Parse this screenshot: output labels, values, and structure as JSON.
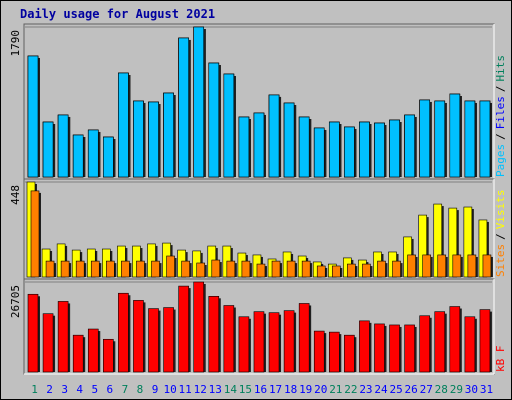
{
  "title": "Daily usage for August 2021",
  "chart_data": [
    {
      "type": "bar",
      "series": [
        {
          "name": "Hits",
          "color": "#00805c",
          "values": [
            1444,
            656,
            740,
            501,
            561,
            477,
            1241,
            907,
            895,
            1002,
            1659,
            1790,
            1360,
            1229,
            716,
            764,
            979,
            883,
            716,
            585,
            656,
            597,
            656,
            644,
            680,
            740,
            919,
            907,
            990,
            907,
            907
          ]
        },
        {
          "name": "Files",
          "color": "#0000ff",
          "values": [
            1444,
            656,
            740,
            501,
            561,
            477,
            1241,
            907,
            895,
            1002,
            1659,
            1790,
            1360,
            1229,
            716,
            764,
            979,
            883,
            716,
            585,
            656,
            597,
            656,
            644,
            680,
            740,
            919,
            907,
            990,
            907,
            907
          ]
        },
        {
          "name": "Pages",
          "color": "#00c0ff",
          "values": [
            1444,
            656,
            740,
            501,
            561,
            477,
            1241,
            907,
            895,
            1002,
            1659,
            1790,
            1360,
            1229,
            716,
            764,
            979,
            883,
            716,
            585,
            656,
            597,
            656,
            644,
            680,
            740,
            919,
            907,
            990,
            907,
            907
          ]
        }
      ],
      "legend_separator": "/",
      "ylim": [
        0,
        1790
      ],
      "yticks": [
        1790
      ]
    },
    {
      "type": "bar",
      "series": [
        {
          "name": "Visits",
          "color": "#ffff00",
          "values": [
            448,
            132,
            156,
            127,
            132,
            132,
            146,
            146,
            156,
            160,
            127,
            123,
            146,
            146,
            113,
            104,
            85,
            118,
            99,
            71,
            61,
            90,
            80,
            118,
            118,
            189,
            292,
            344,
            325,
            330,
            269
          ]
        },
        {
          "name": "Sites",
          "color": "#ff8000",
          "values": [
            406,
            75,
            75,
            75,
            75,
            75,
            75,
            75,
            75,
            99,
            75,
            66,
            80,
            75,
            75,
            61,
            75,
            75,
            75,
            52,
            52,
            61,
            61,
            75,
            75,
            104,
            104,
            104,
            104,
            104,
            104
          ]
        }
      ],
      "legend_separator": "/",
      "ylim": [
        0,
        448
      ],
      "yticks": [
        448
      ]
    },
    {
      "type": "bar",
      "categories": [
        "1",
        "2",
        "3",
        "4",
        "5",
        "6",
        "7",
        "8",
        "9",
        "10",
        "11",
        "12",
        "13",
        "14",
        "15",
        "16",
        "17",
        "18",
        "19",
        "20",
        "21",
        "22",
        "23",
        "24",
        "25",
        "26",
        "27",
        "28",
        "29",
        "30",
        "31"
      ],
      "category_colors": [
        "#00805c",
        "#0000ff",
        "#0000ff",
        "#0000ff",
        "#0000ff",
        "#0000ff",
        "#00805c",
        "#00805c",
        "#0000ff",
        "#0000ff",
        "#0000ff",
        "#0000ff",
        "#0000ff",
        "#00805c",
        "#00805c",
        "#0000ff",
        "#0000ff",
        "#0000ff",
        "#0000ff",
        "#0000ff",
        "#00805c",
        "#00805c",
        "#0000ff",
        "#0000ff",
        "#0000ff",
        "#0000ff",
        "#0000ff",
        "#00805c",
        "#00805c",
        "#0000ff",
        "#0000ff"
      ],
      "series": [
        {
          "name": "kB F",
          "color": "#ff0000",
          "values": [
            23066,
            17300,
            20940,
            10925,
            12750,
            9710,
            23370,
            21245,
            18815,
            19120,
            25490,
            26705,
            22460,
            19730,
            16390,
            17905,
            17600,
            18210,
            20335,
            12140,
            11835,
            10925,
            15175,
            14265,
            13960,
            13960,
            16690,
            17905,
            19425,
            16390,
            18515
          ]
        }
      ],
      "ylim": [
        0,
        26705
      ],
      "yticks": [
        26705
      ]
    }
  ]
}
